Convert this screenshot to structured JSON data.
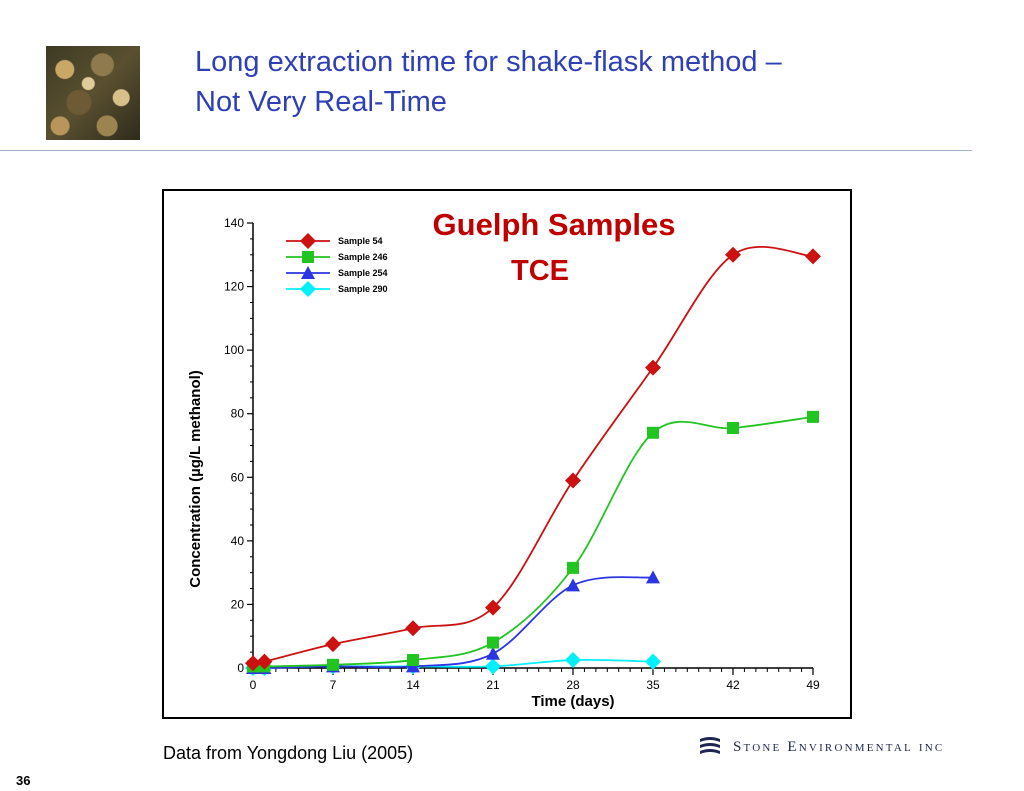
{
  "slide": {
    "title_line1": "Long extraction time for shake-flask method  –",
    "title_line2": "Not Very Real-Time",
    "source": "Data from Yongdong Liu (2005)",
    "page_number": "36",
    "logo_text": "Stone Environmental inc"
  },
  "chart_data": {
    "type": "line",
    "title": "Guelph Samples",
    "subtitle": "TCE",
    "xlabel": "Time (days)",
    "ylabel": "Concentration (µg/L methanol)",
    "xlim": [
      0,
      49
    ],
    "ylim": [
      0,
      140
    ],
    "xticks": [
      0,
      7,
      14,
      21,
      28,
      35,
      42,
      49
    ],
    "yticks": [
      0,
      20,
      40,
      60,
      80,
      100,
      120,
      140
    ],
    "legend_position": "top-left",
    "series": [
      {
        "name": "Sample 54",
        "color": "#cc1111",
        "marker": "diamond",
        "x": [
          0,
          1,
          7,
          14,
          21,
          28,
          35,
          42,
          49
        ],
        "y": [
          1.5,
          2,
          7.5,
          12.5,
          19,
          59,
          94.5,
          130,
          129.5
        ]
      },
      {
        "name": "Sample 246",
        "color": "#22c422",
        "marker": "square",
        "x": [
          0,
          1,
          7,
          14,
          21,
          28,
          35,
          42,
          49
        ],
        "y": [
          0.5,
          0.5,
          1,
          2.5,
          8,
          31.5,
          74,
          75.5,
          79
        ]
      },
      {
        "name": "Sample 254",
        "color": "#2b35e0",
        "marker": "triangle",
        "x": [
          0,
          1,
          7,
          14,
          21,
          28,
          35
        ],
        "y": [
          0,
          0,
          0.5,
          0.5,
          4.5,
          26,
          28.5
        ]
      },
      {
        "name": "Sample 290",
        "color": "#00f0ff",
        "marker": "diamond",
        "x": [
          0,
          1,
          7,
          14,
          21,
          28,
          35
        ],
        "y": [
          0,
          0,
          0.5,
          0.5,
          0.5,
          2.5,
          2
        ]
      }
    ]
  }
}
